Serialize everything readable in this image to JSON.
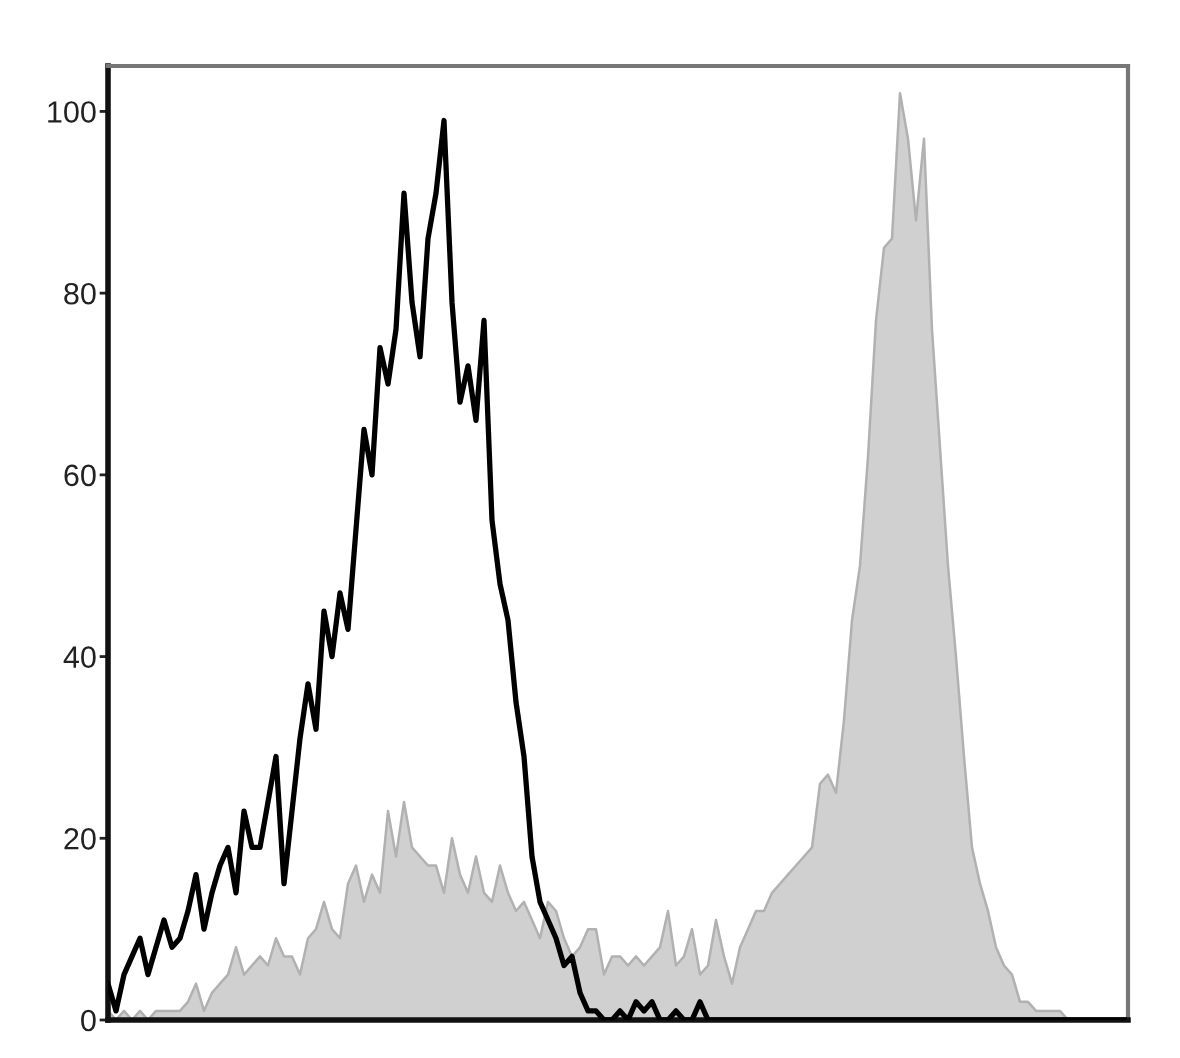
{
  "chart_data": {
    "type": "area",
    "categories": [
      null,
      null,
      null,
      null,
      null,
      null,
      null,
      null,
      null,
      null,
      null,
      null,
      null,
      null,
      null,
      null,
      null,
      null,
      null,
      null,
      null,
      null,
      null,
      null,
      null,
      null,
      null,
      null,
      null,
      null,
      null,
      null,
      null,
      null,
      null,
      null,
      null,
      null,
      null,
      null,
      null,
      null,
      null,
      null,
      null,
      null,
      null,
      null,
      null,
      null,
      null,
      null,
      null,
      null,
      null,
      null,
      null,
      null,
      null,
      null,
      null,
      null,
      null,
      null,
      null,
      null,
      null,
      null,
      null,
      null,
      null,
      null,
      null,
      null,
      null,
      null,
      null,
      null,
      null,
      null,
      null,
      null,
      null,
      null,
      null,
      null,
      null,
      null,
      null,
      null,
      null,
      null,
      null,
      null,
      null,
      null,
      null,
      null,
      null,
      null,
      null,
      null,
      null,
      null,
      null,
      null,
      null,
      null,
      null,
      null,
      null,
      null,
      null,
      null,
      null,
      null,
      null,
      null,
      null,
      null,
      null,
      null,
      null,
      null,
      null,
      null,
      null,
      null
    ],
    "series": [
      {
        "color": "#d0d0d0",
        "values": [
          1,
          0,
          1,
          0,
          1,
          0,
          1,
          1,
          1,
          1,
          2,
          4,
          1,
          3,
          4,
          5,
          8,
          5,
          6,
          7,
          6,
          9,
          7,
          7,
          5,
          9,
          10,
          13,
          10,
          9,
          15,
          17,
          13,
          16,
          14,
          23,
          18,
          24,
          19,
          18,
          17,
          17,
          14,
          20,
          16,
          14,
          18,
          14,
          13,
          17,
          14,
          12,
          13,
          11,
          9,
          13,
          12,
          9,
          7,
          8,
          10,
          10,
          5,
          7,
          7,
          6,
          7,
          6,
          7,
          8,
          12,
          6,
          7,
          10,
          5,
          6,
          11,
          7,
          4,
          8,
          10,
          12,
          12,
          14,
          15,
          16,
          17,
          18,
          19,
          26,
          27,
          25,
          33,
          44,
          50,
          62,
          77,
          85,
          86,
          102,
          97,
          88,
          97,
          76,
          63,
          50,
          40,
          29,
          19,
          15,
          12,
          8,
          6,
          5,
          2,
          2,
          1,
          1,
          1,
          1,
          0,
          0,
          0,
          0,
          0,
          0,
          0,
          0
        ]
      },
      {
        "type": "line",
        "color": "#000000",
        "values": [
          4,
          1,
          5,
          7,
          9,
          5,
          8,
          11,
          8,
          9,
          12,
          16,
          10,
          14,
          17,
          19,
          14,
          23,
          19,
          19,
          24,
          29,
          15,
          23,
          31,
          37,
          32,
          45,
          40,
          47,
          43,
          54,
          65,
          60,
          74,
          70,
          76,
          91,
          79,
          73,
          86,
          91,
          99,
          79,
          68,
          72,
          66,
          77,
          55,
          48,
          44,
          35,
          29,
          18,
          13,
          11,
          9,
          6,
          7,
          3,
          1,
          1,
          0,
          0,
          1,
          0,
          2,
          1,
          2,
          0,
          0,
          1,
          0,
          0,
          2,
          0,
          0,
          0,
          0,
          0,
          0,
          0,
          0,
          0,
          0,
          0,
          0,
          0,
          0,
          0,
          0,
          0,
          0,
          0,
          0,
          0,
          0,
          0,
          0,
          0,
          0,
          0,
          0,
          0,
          0,
          0,
          0,
          0,
          0,
          0,
          0,
          0,
          0,
          0,
          0,
          0,
          0,
          0,
          0,
          0,
          0,
          0,
          0,
          0,
          0,
          0,
          0,
          0
        ]
      }
    ],
    "ylim": [
      0,
      105
    ],
    "yticks": [
      0,
      20,
      40,
      60,
      80,
      100
    ],
    "tick_labels": "y"
  }
}
